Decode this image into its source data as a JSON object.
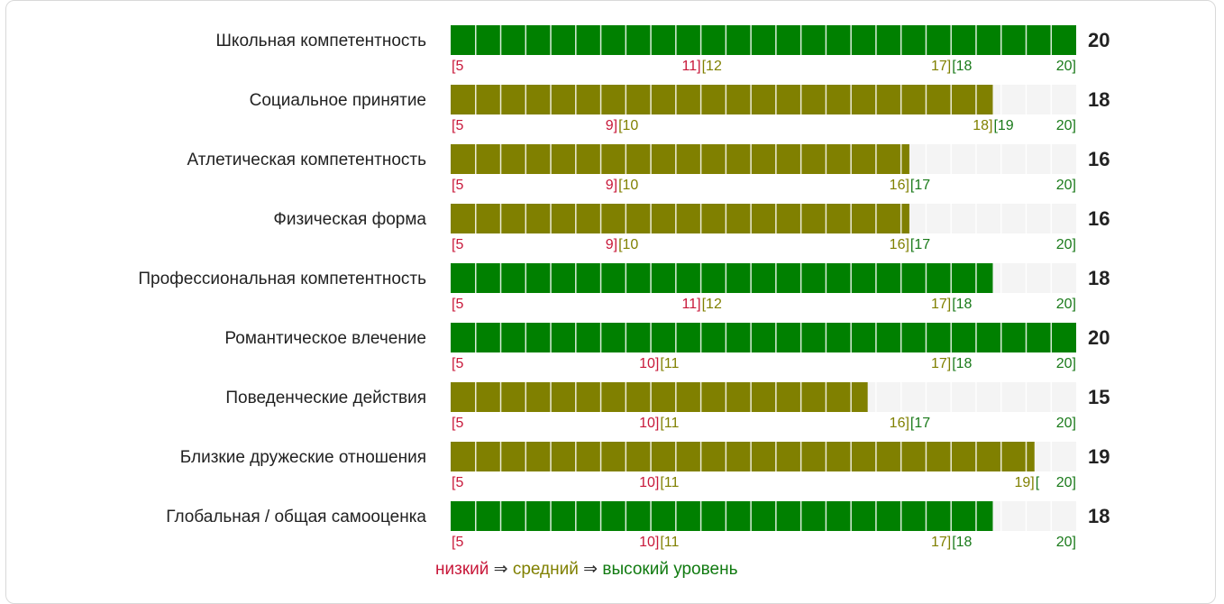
{
  "colors": {
    "high": "#008000",
    "mid": "#808000",
    "low": "#c8183a",
    "empty": "#f4f4f4",
    "label_low": "#c8183a",
    "label_mid": "#808000",
    "label_high": "#1a7a1a"
  },
  "legend": {
    "low": "низкий",
    "arrow1": "⇒",
    "mid": "средний",
    "arrow2": "⇒",
    "high": "высокий уровень"
  },
  "chart_data": {
    "type": "bar",
    "orientation": "horizontal",
    "scale_min": 5,
    "scale_max": 20,
    "segments": 25,
    "rows": [
      {
        "label": "Школьная компетентность",
        "value": 20,
        "value_text": "20",
        "level": "high",
        "ranges": [
          {
            "lo": "[5",
            "hi": "11]"
          },
          {
            "lo": "[12",
            "hi": "17]"
          },
          {
            "lo": "[18",
            "hi": "20]"
          }
        ]
      },
      {
        "label": "Социальное принятие",
        "value": 18,
        "value_text": "18",
        "level": "mid",
        "ranges": [
          {
            "lo": "[5",
            "hi": "9]"
          },
          {
            "lo": "[10",
            "hi": "18]"
          },
          {
            "lo": "[19",
            "hi": "20]"
          }
        ]
      },
      {
        "label": "Атлетическая компетентность",
        "value": 16,
        "value_text": "16",
        "level": "mid",
        "ranges": [
          {
            "lo": "[5",
            "hi": "9]"
          },
          {
            "lo": "[10",
            "hi": "16]"
          },
          {
            "lo": "[17",
            "hi": "20]"
          }
        ]
      },
      {
        "label": "Физическая форма",
        "value": 16,
        "value_text": "16",
        "level": "mid",
        "ranges": [
          {
            "lo": "[5",
            "hi": "9]"
          },
          {
            "lo": "[10",
            "hi": "16]"
          },
          {
            "lo": "[17",
            "hi": "20]"
          }
        ]
      },
      {
        "label": "Профессиональная компетентность",
        "value": 18,
        "value_text": "18",
        "level": "high",
        "ranges": [
          {
            "lo": "[5",
            "hi": "11]"
          },
          {
            "lo": "[12",
            "hi": "17]"
          },
          {
            "lo": "[18",
            "hi": "20]"
          }
        ]
      },
      {
        "label": "Романтическое влечение",
        "value": 20,
        "value_text": "20",
        "level": "high",
        "ranges": [
          {
            "lo": "[5",
            "hi": "10]"
          },
          {
            "lo": "[11",
            "hi": "17]"
          },
          {
            "lo": "[18",
            "hi": "20]"
          }
        ]
      },
      {
        "label": "Поведенческие действия",
        "value": 15,
        "value_text": "15",
        "level": "mid",
        "ranges": [
          {
            "lo": "[5",
            "hi": "10]"
          },
          {
            "lo": "[11",
            "hi": "16]"
          },
          {
            "lo": "[17",
            "hi": "20]"
          }
        ]
      },
      {
        "label": "Близкие дружеские отношения",
        "value": 19,
        "value_text": "19",
        "level": "mid",
        "ranges": [
          {
            "lo": "[5",
            "hi": "10]"
          },
          {
            "lo": "[11",
            "hi": "19]"
          },
          {
            "lo": "[",
            "hi": "20]"
          }
        ]
      },
      {
        "label": "Глобальная / общая самооценка",
        "value": 18,
        "value_text": "18",
        "level": "high",
        "ranges": [
          {
            "lo": "[5",
            "hi": "10]"
          },
          {
            "lo": "[11",
            "hi": "17]"
          },
          {
            "lo": "[18",
            "hi": "20]"
          }
        ]
      }
    ]
  }
}
